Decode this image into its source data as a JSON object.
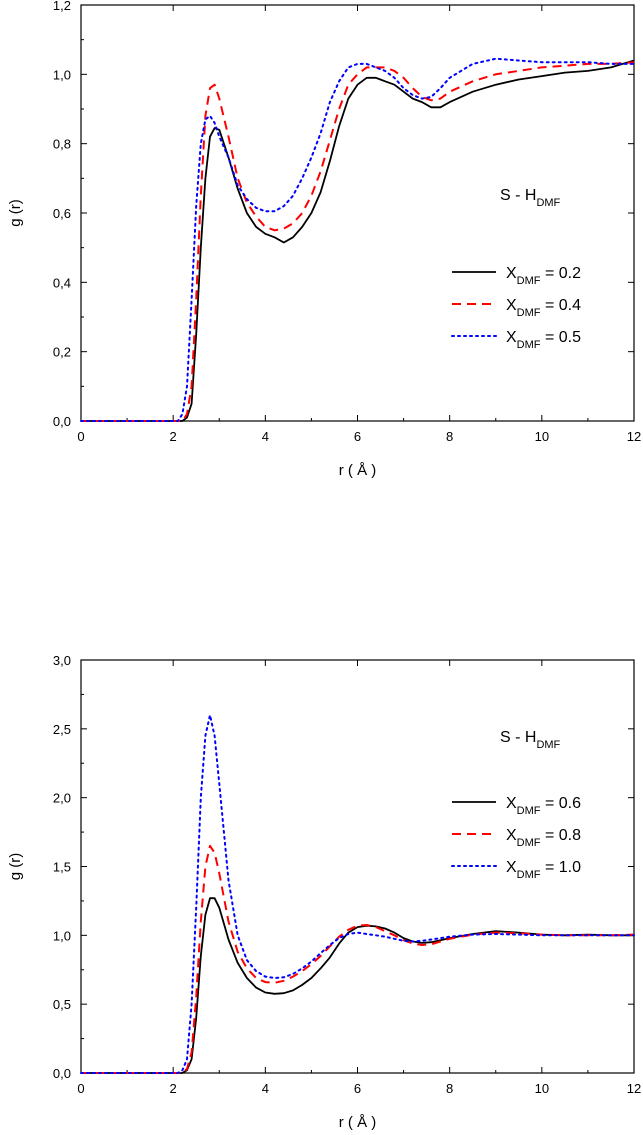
{
  "chart_data": [
    {
      "type": "line",
      "xlabel": "r ( Å )",
      "ylabel": "g (r)",
      "xlim": [
        0,
        12
      ],
      "ylim": [
        0,
        1.2
      ],
      "xticks": [
        0,
        2,
        4,
        6,
        8,
        10,
        12
      ],
      "xtick_labels": [
        "0",
        "2",
        "4",
        "6",
        "8",
        "10",
        "12"
      ],
      "yticks": [
        0,
        0.2,
        0.4,
        0.6,
        0.8,
        1.0,
        1.2
      ],
      "ytick_labels": [
        "0,0",
        "0,2",
        "0,4",
        "0,6",
        "0,8",
        "1,0",
        "1,2"
      ],
      "annotation": {
        "main": "S - H",
        "sub": "DMF"
      },
      "legend_position": "right-middle",
      "grid": false,
      "series": [
        {
          "label_main": "X",
          "label_sub": "DMF",
          "label_rest": " = 0.2",
          "color": "#000000",
          "style": "solid",
          "x": [
            0,
            2.2,
            2.3,
            2.4,
            2.5,
            2.6,
            2.7,
            2.8,
            2.9,
            3.0,
            3.2,
            3.4,
            3.6,
            3.8,
            4.0,
            4.2,
            4.4,
            4.6,
            4.8,
            5.0,
            5.2,
            5.4,
            5.6,
            5.8,
            6.0,
            6.2,
            6.4,
            6.6,
            6.8,
            7.0,
            7.2,
            7.4,
            7.6,
            7.8,
            8.0,
            8.5,
            9.0,
            9.5,
            10.0,
            10.5,
            11.0,
            11.5,
            12.0
          ],
          "y": [
            0,
            0,
            0.01,
            0.05,
            0.25,
            0.5,
            0.7,
            0.82,
            0.845,
            0.84,
            0.76,
            0.67,
            0.6,
            0.56,
            0.54,
            0.53,
            0.515,
            0.53,
            0.56,
            0.6,
            0.66,
            0.75,
            0.85,
            0.93,
            0.97,
            0.99,
            0.99,
            0.98,
            0.97,
            0.95,
            0.93,
            0.92,
            0.905,
            0.905,
            0.92,
            0.95,
            0.97,
            0.985,
            0.995,
            1.005,
            1.01,
            1.02,
            1.04
          ]
        },
        {
          "label_main": "X",
          "label_sub": "DMF",
          "label_rest": " = 0.4",
          "color": "#ff0000",
          "style": "dashed",
          "x": [
            0,
            2.2,
            2.3,
            2.4,
            2.5,
            2.6,
            2.7,
            2.8,
            2.9,
            3.0,
            3.2,
            3.4,
            3.6,
            3.8,
            4.0,
            4.2,
            4.4,
            4.6,
            4.8,
            5.0,
            5.2,
            5.4,
            5.6,
            5.8,
            6.0,
            6.2,
            6.4,
            6.6,
            6.8,
            7.0,
            7.2,
            7.4,
            7.6,
            7.8,
            8.0,
            8.5,
            9.0,
            9.5,
            10.0,
            10.5,
            11.0,
            11.5,
            12.0
          ],
          "y": [
            0,
            0,
            0.02,
            0.1,
            0.35,
            0.65,
            0.88,
            0.96,
            0.97,
            0.93,
            0.82,
            0.7,
            0.63,
            0.59,
            0.56,
            0.55,
            0.555,
            0.57,
            0.6,
            0.65,
            0.72,
            0.81,
            0.9,
            0.97,
            1.0,
            1.02,
            1.02,
            1.02,
            1.01,
            0.99,
            0.96,
            0.935,
            0.925,
            0.93,
            0.95,
            0.98,
            1.0,
            1.01,
            1.02,
            1.025,
            1.03,
            1.03,
            1.035
          ]
        },
        {
          "label_main": "X",
          "label_sub": "DMF",
          "label_rest": " = 0.5",
          "color": "#0000ff",
          "style": "dotted",
          "x": [
            0,
            2.1,
            2.2,
            2.3,
            2.4,
            2.5,
            2.6,
            2.7,
            2.8,
            2.9,
            3.0,
            3.2,
            3.4,
            3.6,
            3.8,
            4.0,
            4.2,
            4.4,
            4.6,
            4.8,
            5.0,
            5.2,
            5.4,
            5.6,
            5.8,
            6.0,
            6.2,
            6.4,
            6.6,
            6.8,
            7.0,
            7.2,
            7.4,
            7.6,
            7.8,
            8.0,
            8.5,
            9.0,
            9.5,
            10.0,
            10.5,
            11.0,
            11.5,
            12.0
          ],
          "y": [
            0,
            0,
            0.02,
            0.1,
            0.35,
            0.62,
            0.8,
            0.87,
            0.88,
            0.86,
            0.82,
            0.76,
            0.68,
            0.64,
            0.615,
            0.605,
            0.605,
            0.62,
            0.65,
            0.7,
            0.76,
            0.83,
            0.92,
            0.98,
            1.02,
            1.03,
            1.03,
            1.02,
            1.01,
            0.99,
            0.96,
            0.94,
            0.93,
            0.935,
            0.96,
            0.99,
            1.03,
            1.045,
            1.04,
            1.035,
            1.035,
            1.035,
            1.03,
            1.03
          ]
        }
      ]
    },
    {
      "type": "line",
      "xlabel": "r ( Å )",
      "ylabel": "g (r)",
      "xlim": [
        0,
        12
      ],
      "ylim": [
        0,
        3.0
      ],
      "xticks": [
        0,
        2,
        4,
        6,
        8,
        10,
        12
      ],
      "xtick_labels": [
        "0",
        "2",
        "4",
        "6",
        "8",
        "10",
        "12"
      ],
      "yticks": [
        0,
        0.5,
        1.0,
        1.5,
        2.0,
        2.5,
        3.0
      ],
      "ytick_labels": [
        "0,0",
        "0,5",
        "1,0",
        "1,5",
        "2,0",
        "2,5",
        "3,0"
      ],
      "annotation": {
        "main": "S - H",
        "sub": "DMF"
      },
      "legend_position": "right-middle",
      "grid": false,
      "series": [
        {
          "label_main": "X",
          "label_sub": "DMF",
          "label_rest": " = 0.6",
          "color": "#000000",
          "style": "solid",
          "x": [
            0,
            2.2,
            2.3,
            2.4,
            2.5,
            2.6,
            2.7,
            2.8,
            2.9,
            3.0,
            3.2,
            3.4,
            3.6,
            3.8,
            4.0,
            4.2,
            4.4,
            4.6,
            4.8,
            5.0,
            5.2,
            5.4,
            5.6,
            5.8,
            6.0,
            6.2,
            6.4,
            6.6,
            6.8,
            7.0,
            7.2,
            7.4,
            7.6,
            7.8,
            8.0,
            8.5,
            9.0,
            9.5,
            10.0,
            10.5,
            11.0,
            11.5,
            12.0
          ],
          "y": [
            0,
            0,
            0.02,
            0.1,
            0.4,
            0.85,
            1.15,
            1.27,
            1.27,
            1.2,
            0.97,
            0.8,
            0.69,
            0.62,
            0.585,
            0.575,
            0.58,
            0.6,
            0.64,
            0.69,
            0.76,
            0.84,
            0.94,
            1.02,
            1.06,
            1.07,
            1.065,
            1.05,
            1.02,
            0.98,
            0.955,
            0.945,
            0.95,
            0.965,
            0.98,
            1.01,
            1.03,
            1.02,
            1.005,
            1.0,
            1.005,
            1.0,
            1.0
          ]
        },
        {
          "label_main": "X",
          "label_sub": "DMF",
          "label_rest": " = 0.8",
          "color": "#ff0000",
          "style": "dashed",
          "x": [
            0,
            2.2,
            2.3,
            2.4,
            2.5,
            2.6,
            2.7,
            2.8,
            2.9,
            3.0,
            3.2,
            3.4,
            3.6,
            3.8,
            4.0,
            4.2,
            4.4,
            4.6,
            4.8,
            5.0,
            5.2,
            5.4,
            5.6,
            5.8,
            6.0,
            6.2,
            6.4,
            6.6,
            6.8,
            7.0,
            7.2,
            7.4,
            7.6,
            7.8,
            8.0,
            8.5,
            9.0,
            9.5,
            10.0,
            10.5,
            11.0,
            11.5,
            12.0
          ],
          "y": [
            0,
            0,
            0.03,
            0.15,
            0.55,
            1.1,
            1.5,
            1.65,
            1.6,
            1.45,
            1.1,
            0.88,
            0.76,
            0.69,
            0.66,
            0.655,
            0.67,
            0.7,
            0.74,
            0.79,
            0.85,
            0.92,
            0.99,
            1.04,
            1.07,
            1.075,
            1.06,
            1.03,
            1.0,
            0.965,
            0.94,
            0.93,
            0.935,
            0.955,
            0.975,
            1.005,
            1.02,
            1.015,
            1.005,
            1.0,
            1.0,
            1.0,
            1.005
          ]
        },
        {
          "label_main": "X",
          "label_sub": "DMF",
          "label_rest": " = 1.0",
          "color": "#0000ff",
          "style": "dotted",
          "x": [
            0,
            2.1,
            2.2,
            2.3,
            2.4,
            2.5,
            2.6,
            2.7,
            2.8,
            2.9,
            3.0,
            3.2,
            3.4,
            3.6,
            3.8,
            4.0,
            4.2,
            4.4,
            4.6,
            4.8,
            5.0,
            5.2,
            5.4,
            5.6,
            5.8,
            6.0,
            6.2,
            6.4,
            6.6,
            6.8,
            7.0,
            7.2,
            7.4,
            7.6,
            7.8,
            8.0,
            8.5,
            9.0,
            9.5,
            10.0,
            10.5,
            11.0,
            11.5,
            12.0
          ],
          "y": [
            0,
            0,
            0.02,
            0.1,
            0.5,
            1.2,
            2.0,
            2.45,
            2.6,
            2.45,
            2.1,
            1.4,
            1.0,
            0.82,
            0.74,
            0.7,
            0.69,
            0.695,
            0.72,
            0.76,
            0.81,
            0.87,
            0.93,
            0.98,
            1.01,
            1.02,
            1.01,
            1.0,
            0.99,
            0.975,
            0.96,
            0.955,
            0.96,
            0.97,
            0.98,
            0.99,
            1.005,
            1.01,
            1.005,
            1.0,
            1.0,
            1.0,
            1.0,
            1.0
          ]
        }
      ]
    }
  ]
}
